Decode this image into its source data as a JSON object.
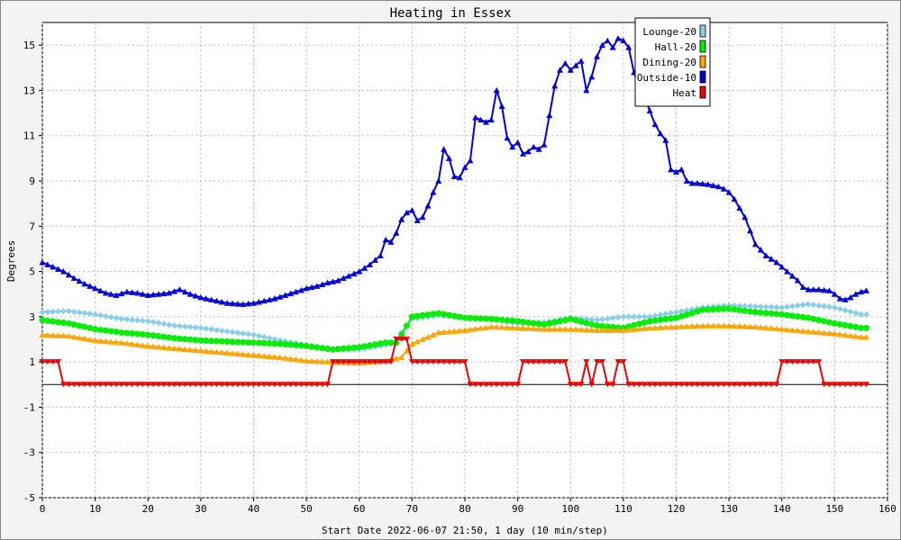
{
  "chart_data": {
    "type": "line",
    "title": "Heating in Essex",
    "xlabel": "Start Date 2022-06-07 21:50, 1 day (10 min/step)",
    "ylabel": "Degrees",
    "xlim": [
      0,
      160
    ],
    "ylim": [
      -5,
      16
    ],
    "xticks": [
      0,
      10,
      20,
      30,
      40,
      50,
      60,
      70,
      80,
      90,
      100,
      110,
      120,
      130,
      140,
      150,
      160
    ],
    "yticks": [
      -5,
      -3,
      -1,
      1,
      3,
      5,
      7,
      9,
      11,
      13,
      15
    ],
    "grid": true,
    "legend_position": "top-right",
    "zero_line": true,
    "series": [
      {
        "name": "Lounge-20",
        "color": "#87ceeb",
        "marker": "diamond",
        "points": [
          [
            0,
            3.2
          ],
          [
            5,
            3.25
          ],
          [
            10,
            3.1
          ],
          [
            15,
            2.9
          ],
          [
            20,
            2.8
          ],
          [
            25,
            2.6
          ],
          [
            30,
            2.5
          ],
          [
            35,
            2.35
          ],
          [
            40,
            2.2
          ],
          [
            45,
            1.95
          ],
          [
            50,
            1.75
          ],
          [
            55,
            1.55
          ],
          [
            60,
            1.55
          ],
          [
            65,
            1.75
          ],
          [
            67,
            1.85
          ],
          [
            68,
            2.3
          ],
          [
            70,
            2.9
          ],
          [
            75,
            3.05
          ],
          [
            80,
            2.95
          ],
          [
            85,
            2.9
          ],
          [
            90,
            2.7
          ],
          [
            95,
            2.75
          ],
          [
            100,
            2.95
          ],
          [
            105,
            2.85
          ],
          [
            110,
            3.0
          ],
          [
            115,
            3.0
          ],
          [
            120,
            3.2
          ],
          [
            125,
            3.4
          ],
          [
            130,
            3.5
          ],
          [
            135,
            3.45
          ],
          [
            140,
            3.4
          ],
          [
            145,
            3.55
          ],
          [
            150,
            3.4
          ],
          [
            155,
            3.1
          ],
          [
            156,
            3.1
          ]
        ]
      },
      {
        "name": "Hall-20",
        "color": "#00ee00",
        "marker": "circle",
        "points": [
          [
            0,
            2.85
          ],
          [
            5,
            2.7
          ],
          [
            10,
            2.45
          ],
          [
            15,
            2.3
          ],
          [
            20,
            2.2
          ],
          [
            25,
            2.05
          ],
          [
            30,
            1.95
          ],
          [
            35,
            1.9
          ],
          [
            40,
            1.85
          ],
          [
            45,
            1.8
          ],
          [
            50,
            1.7
          ],
          [
            55,
            1.55
          ],
          [
            60,
            1.65
          ],
          [
            65,
            1.85
          ],
          [
            67,
            1.85
          ],
          [
            68,
            2.2
          ],
          [
            70,
            3.0
          ],
          [
            75,
            3.15
          ],
          [
            80,
            2.95
          ],
          [
            85,
            2.9
          ],
          [
            90,
            2.8
          ],
          [
            95,
            2.65
          ],
          [
            100,
            2.9
          ],
          [
            105,
            2.6
          ],
          [
            110,
            2.5
          ],
          [
            115,
            2.8
          ],
          [
            120,
            2.95
          ],
          [
            125,
            3.3
          ],
          [
            130,
            3.35
          ],
          [
            135,
            3.2
          ],
          [
            140,
            3.1
          ],
          [
            145,
            2.95
          ],
          [
            150,
            2.7
          ],
          [
            155,
            2.5
          ],
          [
            156,
            2.5
          ]
        ]
      },
      {
        "name": "Dining-20",
        "color": "#ffa500",
        "marker": "triangle",
        "points": [
          [
            0,
            2.2
          ],
          [
            5,
            2.15
          ],
          [
            10,
            1.95
          ],
          [
            15,
            1.85
          ],
          [
            20,
            1.7
          ],
          [
            25,
            1.6
          ],
          [
            30,
            1.5
          ],
          [
            35,
            1.4
          ],
          [
            40,
            1.3
          ],
          [
            45,
            1.2
          ],
          [
            50,
            1.05
          ],
          [
            55,
            1.0
          ],
          [
            60,
            0.95
          ],
          [
            65,
            1.05
          ],
          [
            68,
            1.2
          ],
          [
            70,
            1.8
          ],
          [
            75,
            2.3
          ],
          [
            80,
            2.4
          ],
          [
            85,
            2.55
          ],
          [
            90,
            2.5
          ],
          [
            95,
            2.45
          ],
          [
            100,
            2.45
          ],
          [
            105,
            2.4
          ],
          [
            110,
            2.4
          ],
          [
            115,
            2.5
          ],
          [
            120,
            2.55
          ],
          [
            125,
            2.6
          ],
          [
            130,
            2.6
          ],
          [
            135,
            2.55
          ],
          [
            140,
            2.45
          ],
          [
            145,
            2.35
          ],
          [
            150,
            2.25
          ],
          [
            155,
            2.1
          ],
          [
            156,
            2.1
          ]
        ]
      },
      {
        "name": "Outside-10",
        "color": "#0000dd",
        "marker": "triangle",
        "points": [
          [
            0,
            5.4
          ],
          [
            2,
            5.2
          ],
          [
            4,
            5.0
          ],
          [
            6,
            4.7
          ],
          [
            8,
            4.45
          ],
          [
            10,
            4.25
          ],
          [
            12,
            4.05
          ],
          [
            14,
            3.95
          ],
          [
            16,
            4.1
          ],
          [
            18,
            4.05
          ],
          [
            20,
            3.95
          ],
          [
            22,
            4.0
          ],
          [
            24,
            4.05
          ],
          [
            26,
            4.2
          ],
          [
            28,
            4.0
          ],
          [
            30,
            3.85
          ],
          [
            33,
            3.7
          ],
          [
            35,
            3.6
          ],
          [
            38,
            3.55
          ],
          [
            40,
            3.6
          ],
          [
            42,
            3.7
          ],
          [
            44,
            3.8
          ],
          [
            46,
            3.95
          ],
          [
            48,
            4.1
          ],
          [
            50,
            4.25
          ],
          [
            52,
            4.35
          ],
          [
            54,
            4.5
          ],
          [
            56,
            4.6
          ],
          [
            58,
            4.8
          ],
          [
            60,
            5.0
          ],
          [
            62,
            5.3
          ],
          [
            64,
            5.7
          ],
          [
            65,
            6.4
          ],
          [
            66,
            6.3
          ],
          [
            67,
            6.7
          ],
          [
            68,
            7.3
          ],
          [
            69,
            7.6
          ],
          [
            70,
            7.7
          ],
          [
            71,
            7.25
          ],
          [
            72,
            7.4
          ],
          [
            73,
            7.9
          ],
          [
            74,
            8.5
          ],
          [
            75,
            9.0
          ],
          [
            76,
            10.4
          ],
          [
            77,
            10.0
          ],
          [
            78,
            9.2
          ],
          [
            79,
            9.15
          ],
          [
            80,
            9.6
          ],
          [
            81,
            9.9
          ],
          [
            82,
            11.8
          ],
          [
            83,
            11.7
          ],
          [
            84,
            11.6
          ],
          [
            85,
            11.7
          ],
          [
            86,
            13.0
          ],
          [
            87,
            12.3
          ],
          [
            88,
            10.9
          ],
          [
            89,
            10.5
          ],
          [
            90,
            10.7
          ],
          [
            91,
            10.2
          ],
          [
            92,
            10.3
          ],
          [
            93,
            10.5
          ],
          [
            94,
            10.4
          ],
          [
            95,
            10.6
          ],
          [
            96,
            11.9
          ],
          [
            97,
            13.2
          ],
          [
            98,
            13.9
          ],
          [
            99,
            14.2
          ],
          [
            100,
            13.9
          ],
          [
            101,
            14.1
          ],
          [
            102,
            14.3
          ],
          [
            103,
            13.0
          ],
          [
            104,
            13.6
          ],
          [
            105,
            14.5
          ],
          [
            106,
            15.0
          ],
          [
            107,
            15.2
          ],
          [
            108,
            14.9
          ],
          [
            109,
            15.3
          ],
          [
            110,
            15.2
          ],
          [
            111,
            14.9
          ],
          [
            112,
            13.8
          ],
          [
            113,
            13.1
          ],
          [
            114,
            12.7
          ],
          [
            115,
            12.1
          ],
          [
            116,
            11.5
          ],
          [
            117,
            11.1
          ],
          [
            118,
            10.8
          ],
          [
            119,
            9.5
          ],
          [
            120,
            9.4
          ],
          [
            121,
            9.5
          ],
          [
            122,
            9.0
          ],
          [
            123,
            8.9
          ],
          [
            124,
            8.9
          ],
          [
            126,
            8.85
          ],
          [
            128,
            8.75
          ],
          [
            129,
            8.65
          ],
          [
            130,
            8.5
          ],
          [
            131,
            8.2
          ],
          [
            132,
            7.8
          ],
          [
            133,
            7.4
          ],
          [
            134,
            6.8
          ],
          [
            135,
            6.2
          ],
          [
            137,
            5.7
          ],
          [
            139,
            5.4
          ],
          [
            141,
            5.0
          ],
          [
            143,
            4.6
          ],
          [
            144,
            4.3
          ],
          [
            145,
            4.2
          ],
          [
            147,
            4.2
          ],
          [
            149,
            4.15
          ],
          [
            150,
            4.0
          ],
          [
            151,
            3.8
          ],
          [
            152,
            3.75
          ],
          [
            153,
            3.85
          ],
          [
            154,
            4.0
          ],
          [
            155,
            4.1
          ],
          [
            156,
            4.15
          ]
        ]
      },
      {
        "name": "Heat",
        "color": "#ee0000",
        "marker": "triangle-down",
        "points": [
          [
            0,
            1
          ],
          [
            3,
            1
          ],
          [
            4,
            0
          ],
          [
            54,
            0
          ],
          [
            55,
            1
          ],
          [
            66,
            1
          ],
          [
            67,
            2
          ],
          [
            69,
            2
          ],
          [
            70,
            1
          ],
          [
            80,
            1
          ],
          [
            81,
            0
          ],
          [
            90,
            0
          ],
          [
            91,
            1
          ],
          [
            99,
            1
          ],
          [
            100,
            0
          ],
          [
            102,
            0
          ],
          [
            103,
            1
          ],
          [
            104,
            0
          ],
          [
            105,
            1
          ],
          [
            106,
            1
          ],
          [
            107,
            0
          ],
          [
            108,
            0
          ],
          [
            109,
            1
          ],
          [
            110,
            1
          ],
          [
            111,
            0
          ],
          [
            139,
            0
          ],
          [
            140,
            1
          ],
          [
            147,
            1
          ],
          [
            148,
            0
          ],
          [
            156,
            0
          ]
        ]
      }
    ]
  }
}
